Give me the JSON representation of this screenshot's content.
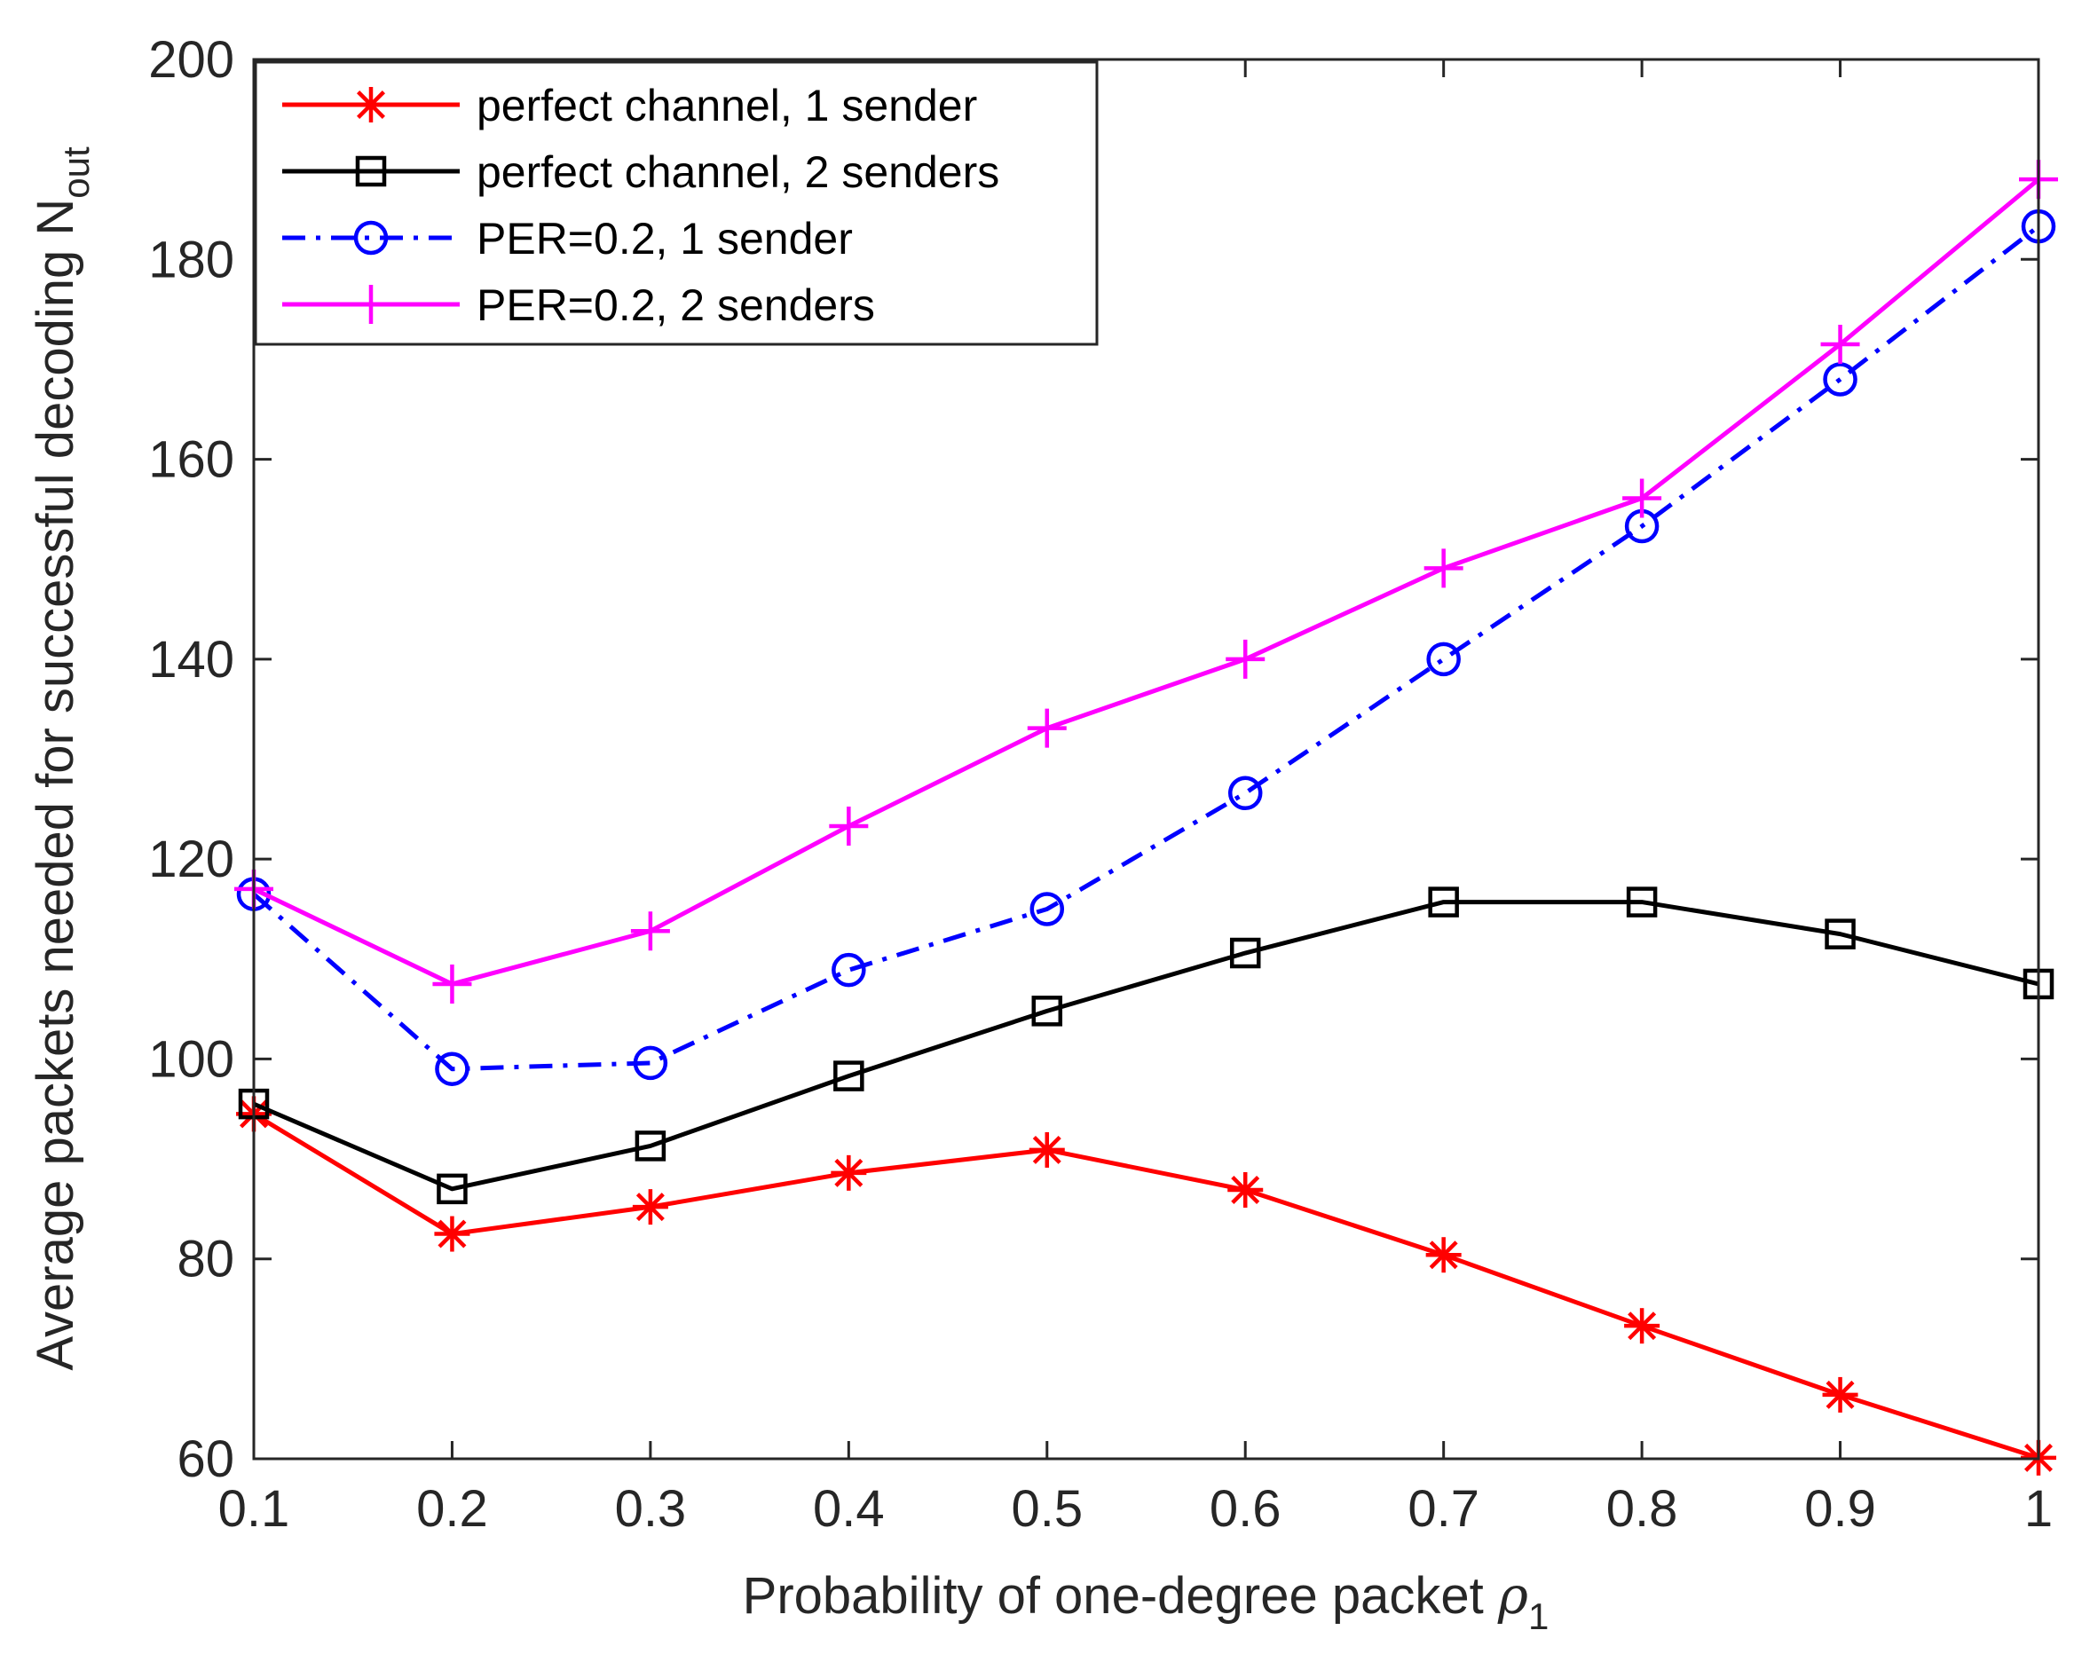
{
  "chart_data": {
    "type": "line",
    "title": "",
    "xlabel": "Probability of one-degree packet",
    "xlabel_symbol": "ρ",
    "xlabel_subscript": "1",
    "ylabel": "Average packets needed for successful decoding N",
    "ylabel_subscript": "out",
    "xlim": [
      0.1,
      1
    ],
    "ylim": [
      60,
      200
    ],
    "x": [
      0.1,
      0.2,
      0.3,
      0.4,
      0.5,
      0.6,
      0.7,
      0.8,
      0.9,
      1.0
    ],
    "xtick_labels": [
      "0.1",
      "0.2",
      "0.3",
      "0.4",
      "0.5",
      "0.6",
      "0.7",
      "0.8",
      "0.9",
      "1"
    ],
    "yticks": [
      60,
      80,
      100,
      120,
      140,
      160,
      180,
      200
    ],
    "grid": false,
    "legend_position": "top-left",
    "series": [
      {
        "name": "perfect channel, 1 sender",
        "color": "#ff0000",
        "line": "solid",
        "marker": "asterisk",
        "values": [
          94.5,
          82.5,
          85.2,
          88.6,
          90.9,
          86.9,
          80.4,
          73.3,
          66.4,
          60.1
        ]
      },
      {
        "name": "perfect channel, 2 senders",
        "color": "#000000",
        "line": "solid",
        "marker": "square",
        "values": [
          95.5,
          87.0,
          91.3,
          98.3,
          104.8,
          110.6,
          115.7,
          115.7,
          112.5,
          107.5
        ]
      },
      {
        "name": "PER=0.2, 1 sender",
        "color": "#0000ff",
        "line": "dashdot",
        "marker": "circle",
        "values": [
          116.5,
          99.0,
          99.6,
          108.9,
          115.0,
          126.6,
          140.0,
          153.3,
          168.0,
          183.3
        ]
      },
      {
        "name": "PER=0.2, 2 senders",
        "color": "#ff00ff",
        "line": "solid",
        "marker": "plus",
        "values": [
          117.0,
          107.5,
          112.8,
          123.3,
          133.1,
          140.0,
          149.1,
          156.1,
          171.5,
          188.0
        ]
      }
    ]
  }
}
